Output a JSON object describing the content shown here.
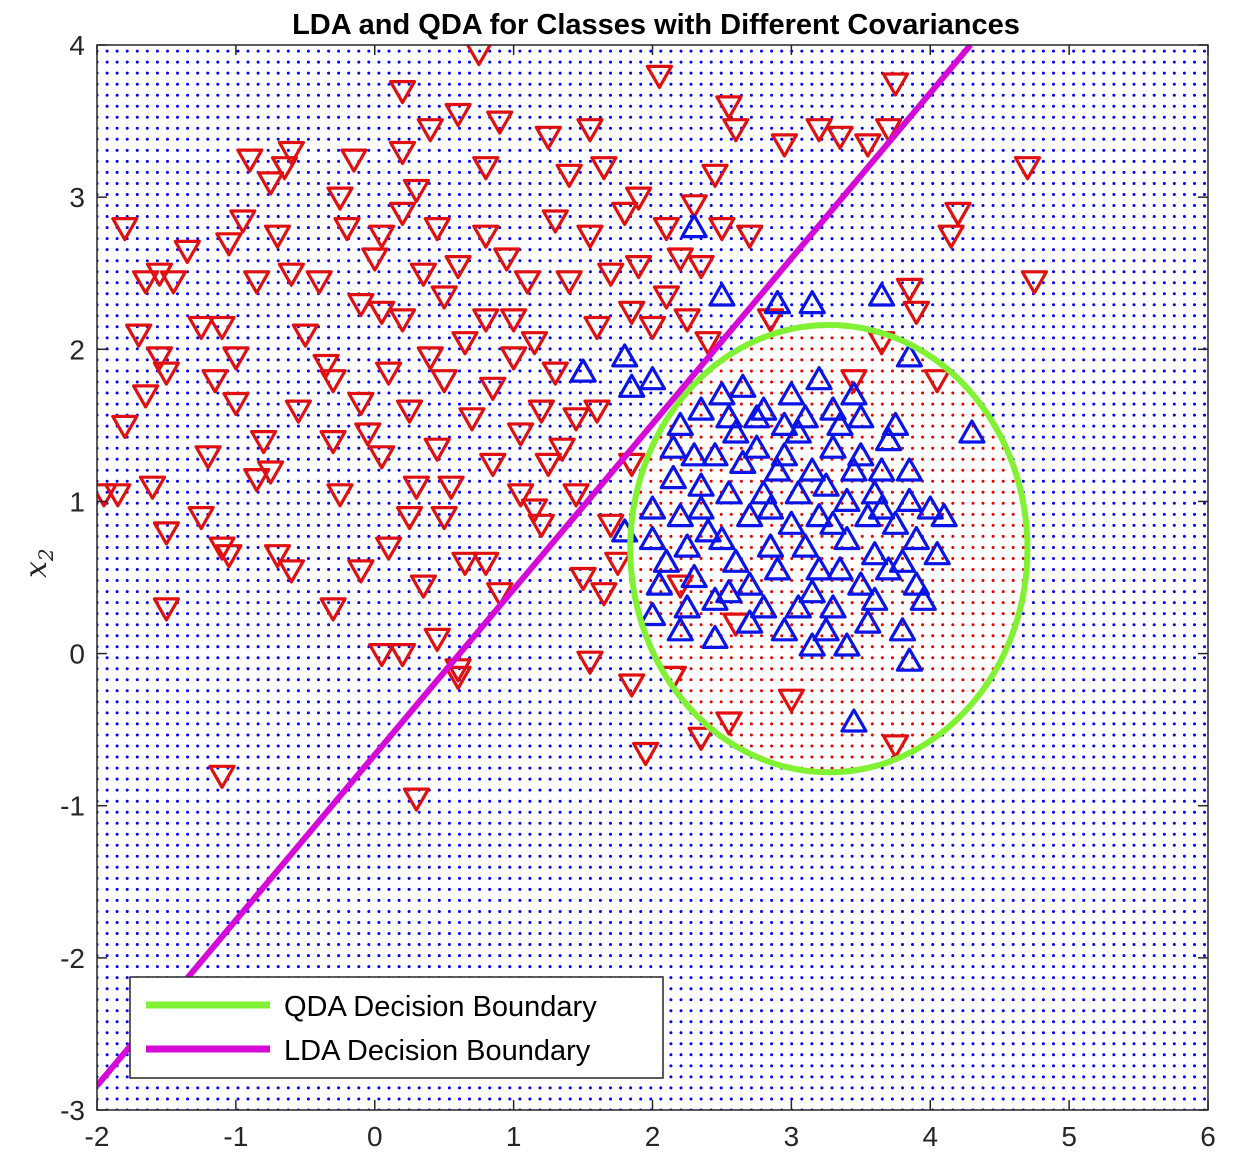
{
  "chart_data": {
    "type": "scatter",
    "title": "LDA and QDA for Classes with Different Covariances",
    "xlabel": "",
    "ylabel": "x_2",
    "ylabel_display": "x",
    "ylabel_sub": "2",
    "xlim": [
      -2,
      6
    ],
    "ylim": [
      -3,
      4
    ],
    "xticks": [
      "-2",
      "-1",
      "0",
      "1",
      "2",
      "3",
      "4",
      "5",
      "6"
    ],
    "yticks": [
      "-3",
      "-2",
      "-1",
      "0",
      "1",
      "2",
      "3",
      "4"
    ],
    "grid": false,
    "legend_position": "bottom-left",
    "colors": {
      "class1": "#e01010",
      "class1_edge": "#c8200a",
      "class2": "#0a14e6",
      "region_class1": "#e60000",
      "region_class2": "#0000ff",
      "qda": "#80f233",
      "lda": "#d60ad6"
    },
    "legend": [
      {
        "name": "QDA Decision Boundary",
        "color": "#80f233"
      },
      {
        "name": "LDA Decision Boundary",
        "color": "#d60ad6"
      }
    ],
    "lda_boundary": {
      "x": [
        -2,
        4.29
      ],
      "y": [
        -2.84,
        4.0
      ]
    },
    "qda_boundary": {
      "cx": 3.27,
      "cy": 0.69,
      "rx": 1.43,
      "ry": 1.47
    },
    "series": [
      {
        "marker": "triangle-down",
        "class": 1,
        "points": [
          [
            -1.8,
            2.8
          ],
          [
            -1.65,
            2.45
          ],
          [
            -1.55,
            2.5
          ],
          [
            -1.45,
            2.45
          ],
          [
            -1.7,
            2.1
          ],
          [
            -1.55,
            1.95
          ],
          [
            -1.5,
            1.85
          ],
          [
            -1.65,
            1.7
          ],
          [
            -1.8,
            1.5
          ],
          [
            -1.95,
            1.05
          ],
          [
            -1.85,
            1.05
          ],
          [
            -1.6,
            1.1
          ],
          [
            -1.5,
            0.8
          ],
          [
            -1.5,
            0.3
          ],
          [
            -1.35,
            2.65
          ],
          [
            -1.25,
            2.15
          ],
          [
            -1.15,
            1.8
          ],
          [
            -1.05,
            2.7
          ],
          [
            -1.1,
            2.15
          ],
          [
            -1.0,
            1.95
          ],
          [
            -1.0,
            1.65
          ],
          [
            -1.2,
            1.3
          ],
          [
            -1.25,
            0.9
          ],
          [
            -1.1,
            0.7
          ],
          [
            -1.05,
            0.65
          ],
          [
            -0.95,
            2.85
          ],
          [
            -0.9,
            3.25
          ],
          [
            -0.85,
            2.45
          ],
          [
            -0.8,
            1.4
          ],
          [
            -0.75,
            1.2
          ],
          [
            -0.85,
            1.15
          ],
          [
            -0.75,
            3.1
          ],
          [
            -0.7,
            2.75
          ],
          [
            -0.65,
            3.2
          ],
          [
            -0.6,
            3.3
          ],
          [
            -0.6,
            2.5
          ],
          [
            -0.55,
            1.6
          ],
          [
            -0.7,
            0.65
          ],
          [
            -0.6,
            0.55
          ],
          [
            -0.5,
            2.1
          ],
          [
            -0.4,
            2.45
          ],
          [
            -0.35,
            1.9
          ],
          [
            -0.3,
            1.8
          ],
          [
            -0.3,
            1.4
          ],
          [
            -0.25,
            1.05
          ],
          [
            -0.3,
            0.3
          ],
          [
            -0.25,
            3.0
          ],
          [
            -0.2,
            2.8
          ],
          [
            -0.15,
            3.25
          ],
          [
            -0.1,
            2.3
          ],
          [
            -0.1,
            1.65
          ],
          [
            -0.05,
            1.45
          ],
          [
            -0.1,
            0.55
          ],
          [
            0.0,
            2.6
          ],
          [
            0.05,
            2.75
          ],
          [
            0.05,
            2.25
          ],
          [
            0.1,
            1.85
          ],
          [
            0.05,
            1.3
          ],
          [
            0.1,
            0.7
          ],
          [
            0.05,
            0.0
          ],
          [
            0.2,
            3.7
          ],
          [
            0.2,
            3.3
          ],
          [
            0.2,
            2.9
          ],
          [
            0.2,
            2.2
          ],
          [
            0.25,
            1.6
          ],
          [
            0.3,
            1.1
          ],
          [
            0.25,
            0.9
          ],
          [
            0.2,
            0.0
          ],
          [
            0.3,
            3.05
          ],
          [
            0.35,
            2.5
          ],
          [
            0.4,
            1.95
          ],
          [
            0.45,
            1.35
          ],
          [
            0.35,
            0.45
          ],
          [
            0.4,
            3.45
          ],
          [
            0.45,
            2.8
          ],
          [
            0.5,
            2.35
          ],
          [
            0.5,
            1.8
          ],
          [
            0.55,
            1.1
          ],
          [
            0.5,
            0.9
          ],
          [
            0.6,
            3.55
          ],
          [
            0.6,
            2.55
          ],
          [
            0.65,
            2.05
          ],
          [
            0.7,
            1.55
          ],
          [
            0.65,
            0.6
          ],
          [
            0.6,
            -0.1
          ],
          [
            0.75,
            3.95
          ],
          [
            0.8,
            3.2
          ],
          [
            0.8,
            2.75
          ],
          [
            0.8,
            2.2
          ],
          [
            0.85,
            1.75
          ],
          [
            0.85,
            1.25
          ],
          [
            0.8,
            0.6
          ],
          [
            0.9,
            3.5
          ],
          [
            0.95,
            2.6
          ],
          [
            1.0,
            2.2
          ],
          [
            1.0,
            1.95
          ],
          [
            1.05,
            1.45
          ],
          [
            1.05,
            1.05
          ],
          [
            1.1,
            2.45
          ],
          [
            1.15,
            2.05
          ],
          [
            1.2,
            1.6
          ],
          [
            1.25,
            1.25
          ],
          [
            1.2,
            0.85
          ],
          [
            1.25,
            3.4
          ],
          [
            1.3,
            2.85
          ],
          [
            1.3,
            1.85
          ],
          [
            1.35,
            1.35
          ],
          [
            1.4,
            3.15
          ],
          [
            1.4,
            2.45
          ],
          [
            1.45,
            1.55
          ],
          [
            1.45,
            1.05
          ],
          [
            1.5,
            0.5
          ],
          [
            1.55,
            3.45
          ],
          [
            1.55,
            2.75
          ],
          [
            1.6,
            2.15
          ],
          [
            1.6,
            1.6
          ],
          [
            1.65,
            3.2
          ],
          [
            1.7,
            2.5
          ],
          [
            1.7,
            0.85
          ],
          [
            1.75,
            0.6
          ],
          [
            1.8,
            2.9
          ],
          [
            1.85,
            2.25
          ],
          [
            1.85,
            1.25
          ],
          [
            1.9,
            3.0
          ],
          [
            1.9,
            2.55
          ],
          [
            2.0,
            2.15
          ],
          [
            2.05,
            3.8
          ],
          [
            2.1,
            2.8
          ],
          [
            2.1,
            2.35
          ],
          [
            2.2,
            2.6
          ],
          [
            2.25,
            2.2
          ],
          [
            2.3,
            2.95
          ],
          [
            2.35,
            2.55
          ],
          [
            2.45,
            3.15
          ],
          [
            2.4,
            2.05
          ],
          [
            2.5,
            2.8
          ],
          [
            2.55,
            3.6
          ],
          [
            2.6,
            3.45
          ],
          [
            2.7,
            2.75
          ],
          [
            2.85,
            2.2
          ],
          [
            2.95,
            3.35
          ],
          [
            3.2,
            3.45
          ],
          [
            3.35,
            3.4
          ],
          [
            3.55,
            3.35
          ],
          [
            3.7,
            3.45
          ],
          [
            3.75,
            3.75
          ],
          [
            3.85,
            2.4
          ],
          [
            3.9,
            2.25
          ],
          [
            4.15,
            2.75
          ],
          [
            4.2,
            2.9
          ],
          [
            4.7,
            3.2
          ],
          [
            4.75,
            2.45
          ],
          [
            4.05,
            1.8
          ],
          [
            3.65,
            2.05
          ],
          [
            3.45,
            1.8
          ],
          [
            1.95,
            -0.65
          ],
          [
            2.35,
            -0.55
          ],
          [
            2.55,
            -0.45
          ],
          [
            2.15,
            -0.15
          ],
          [
            3.0,
            -0.3
          ],
          [
            3.75,
            -0.6
          ],
          [
            1.55,
            -0.05
          ],
          [
            1.65,
            0.4
          ],
          [
            1.85,
            -0.2
          ],
          [
            -1.1,
            -0.8
          ],
          [
            0.3,
            -0.95
          ],
          [
            0.6,
            -0.15
          ],
          [
            0.45,
            0.1
          ],
          [
            1.15,
            0.95
          ],
          [
            0.9,
            0.4
          ],
          [
            2.2,
            0.45
          ],
          [
            2.6,
            0.2
          ]
        ]
      },
      {
        "marker": "triangle-up",
        "class": 2,
        "points": [
          [
            2.3,
            2.8
          ],
          [
            1.5,
            1.85
          ],
          [
            1.8,
            1.95
          ],
          [
            1.85,
            1.75
          ],
          [
            2.0,
            1.8
          ],
          [
            1.8,
            0.8
          ],
          [
            2.5,
            2.35
          ],
          [
            2.9,
            2.3
          ],
          [
            3.15,
            2.3
          ],
          [
            3.65,
            2.35
          ],
          [
            3.85,
            1.95
          ],
          [
            4.3,
            1.45
          ],
          [
            3.85,
            -0.05
          ],
          [
            3.45,
            -0.45
          ],
          [
            3.4,
            0.05
          ],
          [
            3.15,
            0.05
          ],
          [
            2.45,
            0.1
          ],
          [
            2.2,
            0.15
          ],
          [
            2.0,
            0.25
          ],
          [
            2.0,
            0.95
          ],
          [
            2.15,
            1.35
          ],
          [
            2.2,
            1.5
          ],
          [
            2.35,
            1.6
          ],
          [
            2.5,
            1.7
          ],
          [
            2.65,
            1.75
          ],
          [
            2.8,
            1.6
          ],
          [
            2.95,
            1.5
          ],
          [
            3.1,
            1.55
          ],
          [
            3.3,
            1.6
          ],
          [
            3.5,
            1.55
          ],
          [
            3.7,
            1.4
          ],
          [
            3.85,
            1.2
          ],
          [
            4.0,
            0.95
          ],
          [
            4.05,
            0.65
          ],
          [
            3.95,
            0.35
          ],
          [
            3.8,
            0.15
          ],
          [
            3.55,
            0.2
          ],
          [
            3.3,
            0.3
          ],
          [
            3.05,
            0.3
          ],
          [
            2.8,
            0.3
          ],
          [
            2.55,
            0.4
          ],
          [
            2.3,
            0.5
          ],
          [
            2.1,
            0.6
          ],
          [
            2.0,
            0.75
          ],
          [
            2.2,
            0.9
          ],
          [
            2.35,
            1.1
          ],
          [
            2.45,
            1.3
          ],
          [
            2.6,
            1.45
          ],
          [
            2.75,
            1.35
          ],
          [
            2.9,
            1.2
          ],
          [
            3.05,
            1.05
          ],
          [
            3.2,
            0.9
          ],
          [
            3.4,
            0.75
          ],
          [
            3.6,
            0.65
          ],
          [
            3.75,
            0.85
          ],
          [
            3.6,
            1.05
          ],
          [
            3.45,
            1.2
          ],
          [
            3.3,
            1.35
          ],
          [
            3.15,
            1.2
          ],
          [
            3.0,
            0.85
          ],
          [
            2.85,
            0.7
          ],
          [
            2.7,
            0.9
          ],
          [
            2.55,
            1.05
          ],
          [
            2.4,
            0.8
          ],
          [
            2.25,
            0.7
          ],
          [
            2.6,
            0.6
          ],
          [
            2.9,
            0.55
          ],
          [
            3.2,
            0.55
          ],
          [
            3.5,
            0.45
          ],
          [
            3.7,
            0.55
          ],
          [
            3.9,
            0.75
          ],
          [
            3.85,
            1.0
          ],
          [
            3.65,
            1.2
          ],
          [
            3.4,
            1.0
          ],
          [
            3.1,
            0.7
          ],
          [
            2.8,
            1.05
          ],
          [
            2.95,
            1.3
          ],
          [
            3.25,
            1.1
          ],
          [
            3.55,
            0.9
          ],
          [
            2.45,
            0.35
          ],
          [
            2.7,
            0.2
          ],
          [
            2.95,
            0.15
          ],
          [
            3.25,
            0.15
          ],
          [
            3.6,
            0.35
          ],
          [
            2.15,
            1.15
          ],
          [
            2.3,
            1.3
          ],
          [
            2.55,
            1.55
          ],
          [
            3.0,
            1.7
          ],
          [
            3.2,
            1.8
          ],
          [
            3.45,
            1.7
          ],
          [
            3.75,
            1.5
          ],
          [
            2.7,
            0.45
          ],
          [
            3.35,
            0.55
          ],
          [
            3.05,
            1.45
          ],
          [
            2.65,
            1.25
          ],
          [
            2.35,
            0.95
          ],
          [
            3.5,
            1.3
          ],
          [
            3.65,
            0.95
          ],
          [
            2.85,
            0.95
          ],
          [
            3.15,
            0.4
          ],
          [
            2.5,
            0.75
          ],
          [
            3.8,
            0.6
          ],
          [
            3.3,
            0.85
          ],
          [
            2.05,
            0.45
          ],
          [
            2.25,
            0.3
          ],
          [
            3.9,
            0.45
          ],
          [
            4.1,
            0.9
          ],
          [
            2.75,
            1.55
          ],
          [
            3.35,
            1.5
          ]
        ]
      }
    ]
  }
}
